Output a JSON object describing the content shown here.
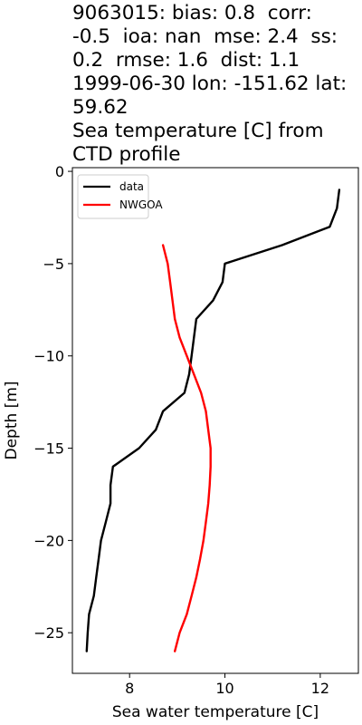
{
  "chart_data": {
    "type": "line",
    "title_lines": [
      "9063015: bias: 0.8  corr:",
      "-0.5  ioa: nan  mse: 2.4  ss:",
      "0.2  rmse: 1.6  dist: 1.1",
      "1999-06-30 lon: -151.62 lat:",
      "59.62",
      "Sea temperature [C] from",
      "CTD profile"
    ],
    "xlabel": "Sea water temperature [C]",
    "ylabel": "Depth [m]",
    "xlim": [
      6.8,
      12.8
    ],
    "ylim": [
      -27.2,
      0.2
    ],
    "xticks": [
      8,
      10,
      12
    ],
    "yticks": [
      0,
      -5,
      -10,
      -15,
      -20,
      -25
    ],
    "xtick_labels": [
      "8",
      "10",
      "12"
    ],
    "ytick_labels": [
      "0",
      "−5",
      "−10",
      "−15",
      "−20",
      "−25"
    ],
    "grid": false,
    "legend_position": "upper-left",
    "series": [
      {
        "name": "data",
        "color": "#000000",
        "points": [
          [
            12.4,
            -1
          ],
          [
            12.35,
            -2
          ],
          [
            12.2,
            -3
          ],
          [
            11.2,
            -4
          ],
          [
            10.0,
            -5
          ],
          [
            9.95,
            -6
          ],
          [
            9.75,
            -7
          ],
          [
            9.4,
            -8
          ],
          [
            9.35,
            -9
          ],
          [
            9.3,
            -10
          ],
          [
            9.25,
            -11
          ],
          [
            9.15,
            -12
          ],
          [
            8.7,
            -13
          ],
          [
            8.55,
            -14
          ],
          [
            8.2,
            -15
          ],
          [
            7.65,
            -16
          ],
          [
            7.6,
            -17
          ],
          [
            7.6,
            -18
          ],
          [
            7.5,
            -19
          ],
          [
            7.4,
            -20
          ],
          [
            7.35,
            -21
          ],
          [
            7.3,
            -22
          ],
          [
            7.25,
            -23
          ],
          [
            7.15,
            -24
          ],
          [
            7.12,
            -25
          ],
          [
            7.1,
            -26
          ]
        ]
      },
      {
        "name": "NWGOA",
        "color": "#ff0000",
        "points": [
          [
            8.7,
            -4
          ],
          [
            8.8,
            -5
          ],
          [
            8.85,
            -6
          ],
          [
            8.9,
            -7
          ],
          [
            8.95,
            -8
          ],
          [
            9.05,
            -9
          ],
          [
            9.2,
            -10
          ],
          [
            9.35,
            -11
          ],
          [
            9.5,
            -12
          ],
          [
            9.6,
            -13
          ],
          [
            9.65,
            -14
          ],
          [
            9.7,
            -15
          ],
          [
            9.7,
            -16
          ],
          [
            9.68,
            -17
          ],
          [
            9.65,
            -18
          ],
          [
            9.6,
            -19
          ],
          [
            9.55,
            -20
          ],
          [
            9.48,
            -21
          ],
          [
            9.4,
            -22
          ],
          [
            9.3,
            -23
          ],
          [
            9.2,
            -24
          ],
          [
            9.05,
            -25
          ],
          [
            8.95,
            -26
          ]
        ]
      }
    ]
  }
}
